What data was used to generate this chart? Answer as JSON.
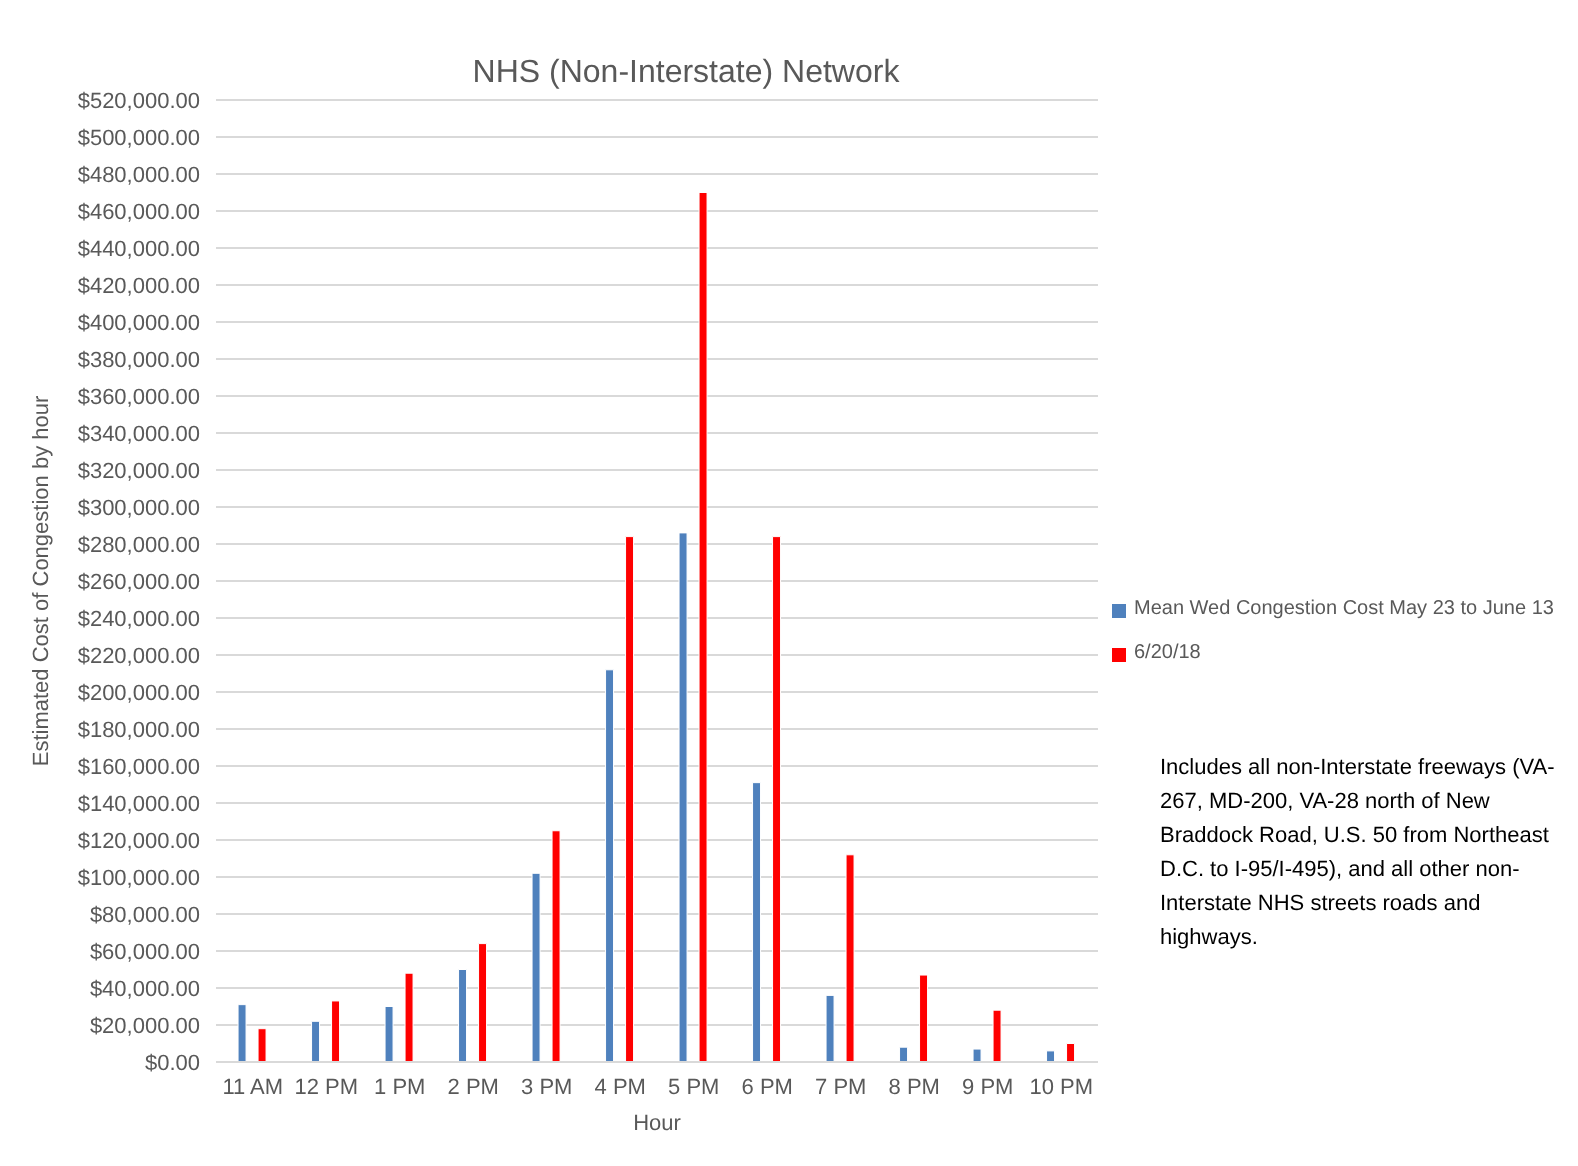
{
  "chart_data": {
    "type": "bar",
    "title": "NHS (Non-Interstate) Network",
    "xlabel": "Hour",
    "ylabel": "Estimated Cost of Congestion by hour",
    "categories": [
      "11 AM",
      "12 PM",
      "1 PM",
      "2 PM",
      "3 PM",
      "4 PM",
      "5 PM",
      "6 PM",
      "7 PM",
      "8 PM",
      "9 PM",
      "10 PM"
    ],
    "series": [
      {
        "name": "Mean Wed Congestion Cost May 23 to June 13",
        "color": "#4f81bd",
        "values": [
          31000,
          22000,
          30000,
          50000,
          102000,
          212000,
          286000,
          151000,
          36000,
          8000,
          7000,
          6000
        ]
      },
      {
        "name": "6/20/18",
        "color": "#ff0000",
        "values": [
          18000,
          33000,
          48000,
          64000,
          125000,
          284000,
          470000,
          284000,
          112000,
          47000,
          28000,
          10000
        ]
      }
    ],
    "ylim": [
      0,
      520000
    ],
    "yticks": [
      {
        "value": 0,
        "label": "$0.00"
      },
      {
        "value": 20000,
        "label": "$20,000.00"
      },
      {
        "value": 40000,
        "label": "$40,000.00"
      },
      {
        "value": 60000,
        "label": "$60,000.00"
      },
      {
        "value": 80000,
        "label": "$80,000.00"
      },
      {
        "value": 100000,
        "label": "$100,000.00"
      },
      {
        "value": 120000,
        "label": "$120,000.00"
      },
      {
        "value": 140000,
        "label": "$140,000.00"
      },
      {
        "value": 160000,
        "label": "$160,000.00"
      },
      {
        "value": 180000,
        "label": "$180,000.00"
      },
      {
        "value": 200000,
        "label": "$200,000.00"
      },
      {
        "value": 220000,
        "label": "$220,000.00"
      },
      {
        "value": 240000,
        "label": "$240,000.00"
      },
      {
        "value": 260000,
        "label": "$260,000.00"
      },
      {
        "value": 280000,
        "label": "$280,000.00"
      },
      {
        "value": 300000,
        "label": "$300,000.00"
      },
      {
        "value": 320000,
        "label": "$320,000.00"
      },
      {
        "value": 340000,
        "label": "$340,000.00"
      },
      {
        "value": 360000,
        "label": "$360,000.00"
      },
      {
        "value": 380000,
        "label": "$380,000.00"
      },
      {
        "value": 400000,
        "label": "$400,000.00"
      },
      {
        "value": 420000,
        "label": "$420,000.00"
      },
      {
        "value": 440000,
        "label": "$440,000.00"
      },
      {
        "value": 460000,
        "label": "$460,000.00"
      },
      {
        "value": 480000,
        "label": "$480,000.00"
      },
      {
        "value": 500000,
        "label": "$500,000.00"
      },
      {
        "value": 520000,
        "label": "$520,000.00"
      }
    ],
    "grid": "y",
    "legend": "right",
    "annotations": [
      "Includes all non-Interstate freeways (VA-267, MD-200, VA-28 north of New Braddock Road, U.S. 50 from Northeast D.C. to I-95/I-495),  and all other non-Interstate NHS streets roads and highways."
    ]
  }
}
